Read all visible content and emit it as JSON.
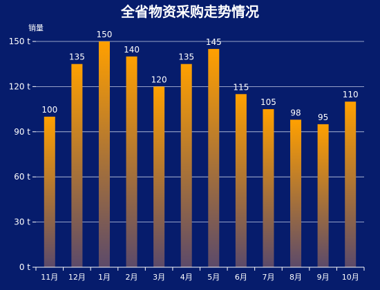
{
  "chart_data": {
    "type": "bar",
    "title": "全省物资采购走势情况",
    "ylabel": "销量",
    "xlabel": "",
    "categories": [
      "11月",
      "12月",
      "1月",
      "2月",
      "3月",
      "4月",
      "5月",
      "6月",
      "7月",
      "8月",
      "9月",
      "10月"
    ],
    "series": [
      {
        "values": [
          100,
          135,
          150,
          140,
          120,
          135,
          145,
          115,
          105,
          98,
          95,
          110
        ]
      }
    ],
    "ylim": [
      0,
      150
    ],
    "yticks": [
      0,
      30,
      60,
      90,
      120,
      150
    ],
    "ytick_suffix": " t",
    "grid": true,
    "legend": "none",
    "data_labels": true
  },
  "colors": {
    "background": "#061c6c",
    "bar_top": "#ffa000",
    "bar_bottom": "#5c4a6a",
    "grid": "#c8cfe6",
    "axis": "#ffffff",
    "text": "#ffffff"
  }
}
